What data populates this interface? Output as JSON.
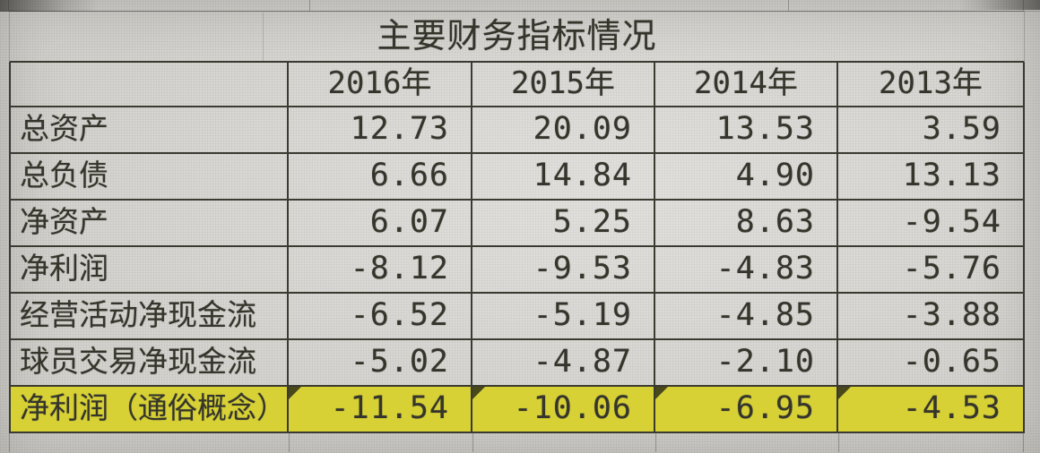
{
  "colors": {
    "bg": "#d3d1cc",
    "border": "#3a3a31",
    "text": "#35352c",
    "hl": "#d7d136"
  },
  "table": {
    "title": "主要财务指标情况",
    "columns": [
      "2016年",
      "2015年",
      "2014年",
      "2013年"
    ],
    "rows": [
      {
        "label": "总资产",
        "values": [
          "12.73",
          "20.09",
          "13.53",
          "3.59"
        ],
        "highlight": false
      },
      {
        "label": "总负债",
        "values": [
          "6.66",
          "14.84",
          "4.90",
          "13.13"
        ],
        "highlight": false
      },
      {
        "label": "净资产",
        "values": [
          "6.07",
          "5.25",
          "8.63",
          "-9.54"
        ],
        "highlight": false
      },
      {
        "label": "净利润",
        "values": [
          "-8.12",
          "-9.53",
          "-4.83",
          "-5.76"
        ],
        "highlight": false
      },
      {
        "label": "经营活动净现金流",
        "values": [
          "-6.52",
          "-5.19",
          "-4.85",
          "-3.88"
        ],
        "highlight": false
      },
      {
        "label": "球员交易净现金流",
        "values": [
          "-5.02",
          "-4.87",
          "-2.10",
          "-0.65"
        ],
        "highlight": false
      },
      {
        "label": "净利润（通俗概念）",
        "values": [
          "-11.54",
          "-10.06",
          "-6.95",
          "-4.53"
        ],
        "highlight": true
      }
    ]
  },
  "chart_data": {
    "type": "table",
    "title": "主要财务指标情况",
    "columns": [
      "2016年",
      "2015年",
      "2014年",
      "2013年"
    ],
    "rows": [
      {
        "label": "总资产",
        "values": [
          12.73,
          20.09,
          13.53,
          3.59
        ]
      },
      {
        "label": "总负债",
        "values": [
          6.66,
          14.84,
          4.9,
          13.13
        ]
      },
      {
        "label": "净资产",
        "values": [
          6.07,
          5.25,
          8.63,
          -9.54
        ]
      },
      {
        "label": "净利润",
        "values": [
          -8.12,
          -9.53,
          -4.83,
          -5.76
        ]
      },
      {
        "label": "经营活动净现金流",
        "values": [
          -6.52,
          -5.19,
          -4.85,
          -3.88
        ]
      },
      {
        "label": "球员交易净现金流",
        "values": [
          -5.02,
          -4.87,
          -2.1,
          -0.65
        ]
      },
      {
        "label": "净利润（通俗概念）",
        "values": [
          -11.54,
          -10.06,
          -6.95,
          -4.53
        ]
      }
    ]
  }
}
